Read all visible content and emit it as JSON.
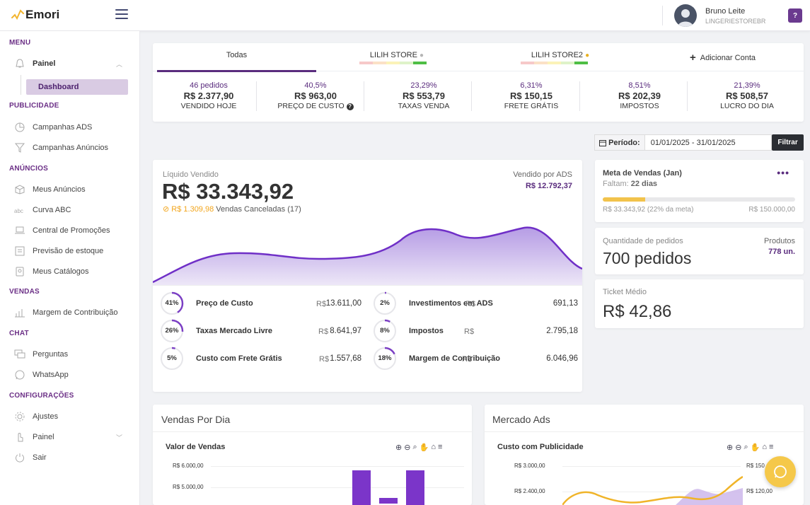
{
  "app": {
    "name": "Emori"
  },
  "user": {
    "name": "Bruno Leite",
    "store": "LINGERIESTOREBR"
  },
  "help": {
    "label": "?"
  },
  "sidebar": {
    "menu_title": "MENU",
    "painel": "Painel",
    "dashboard": "Dashboard",
    "publicidade_title": "PUBLICIDADE",
    "campanhas_ads": "Campanhas ADS",
    "campanhas_anuncios": "Campanhas Anúncios",
    "anuncios_title": "ANÚNCIOS",
    "meus_anuncios": "Meus Anúncios",
    "curva_abc": "Curva ABC",
    "central_promocoes": "Central de Promoções",
    "previsao_estoque": "Previsão de estoque",
    "meus_catalogos": "Meus Catálogos",
    "vendas_title": "VENDAS",
    "margem": "Margem de Contribuição",
    "chat_title": "CHAT",
    "perguntas": "Perguntas",
    "whatsapp": "WhatsApp",
    "config_title": "CONFIGURAÇÕES",
    "ajustes": "Ajustes",
    "painel2": "Painel",
    "sair": "Sair"
  },
  "accounts": {
    "tabs": [
      {
        "label": "Todas"
      },
      {
        "label": "LILIH STORE",
        "medal": "silver"
      },
      {
        "label": "LILIH STORE2",
        "medal": "gold"
      },
      {
        "label": "Adicionar Conta"
      }
    ],
    "stats": [
      {
        "pct": "46 pedidos",
        "value": "R$ 2.377,90",
        "label": "VENDIDO HOJE"
      },
      {
        "pct": "40,5%",
        "value": "R$ 963,00",
        "label": "PREÇO DE CUSTO"
      },
      {
        "pct": "23,29%",
        "value": "R$ 553,79",
        "label": "TAXAS VENDA"
      },
      {
        "pct": "6,31%",
        "value": "R$ 150,15",
        "label": "FRETE GRÁTIS"
      },
      {
        "pct": "8,51%",
        "value": "R$ 202,39",
        "label": "IMPOSTOS"
      },
      {
        "pct": "21,39%",
        "value": "R$ 508,57",
        "label": "LUCRO DO DIA"
      }
    ]
  },
  "period": {
    "label": "Período:",
    "value": "01/01/2025 - 31/01/2025",
    "button": "Filtrar"
  },
  "liquido": {
    "label": "Líquido Vendido",
    "value": "R$ 33.343,92",
    "canceled_value": "R$ 1.309,98",
    "canceled_label": "Vendas Canceladas (17)",
    "ads_label": "Vendido por ADS",
    "ads_value": "R$ 12.792,37"
  },
  "costs": [
    {
      "pct": "41%",
      "fraction": 0.41,
      "label": "Preço de Custo",
      "currency": "R$",
      "value": "13.611,00"
    },
    {
      "pct": "26%",
      "fraction": 0.26,
      "label": "Taxas Mercado Livre",
      "currency": "R$",
      "value": "8.641,97"
    },
    {
      "pct": "5%",
      "fraction": 0.05,
      "label": "Custo com Frete Grátis",
      "currency": "R$",
      "value": "1.557,68"
    },
    {
      "pct": "2%",
      "fraction": 0.02,
      "label": "Investimentos em ADS",
      "currency": "R$",
      "value": "691,13"
    },
    {
      "pct": "8%",
      "fraction": 0.08,
      "label": "Impostos",
      "currency": "R$",
      "value": "2.795,18"
    },
    {
      "pct": "18%",
      "fraction": 0.18,
      "label": "Margem de Contribuição",
      "currency": "R$",
      "value": "6.046,96"
    }
  ],
  "meta": {
    "title": "Meta de Vendas (Jan)",
    "faltam_label": "Faltam:",
    "faltam_value": "22 dias",
    "progress": 0.22,
    "current": "R$ 33.343,92 (22% da meta)",
    "target": "R$ 150.000,00"
  },
  "pedidos": {
    "label": "Quantidade de pedidos",
    "value": "700 pedidos",
    "produtos_label": "Produtos",
    "produtos_value": "778 un."
  },
  "ticket": {
    "label": "Ticket Médio",
    "value": "R$ 42,86"
  },
  "vendas_dia": {
    "title": "Vendas Por Dia",
    "chart_data": {
      "type": "bar",
      "title": "Valor de Vendas",
      "y_ticks": [
        "R$ 6.000,00",
        "R$ 5.000,00"
      ],
      "values": [
        5800,
        4400,
        5800
      ]
    }
  },
  "mercado_ads": {
    "title": "Mercado Ads",
    "chart_data": {
      "type": "line",
      "title": "Custo com Publicidade",
      "y_left_ticks": [
        "R$ 3.000,00",
        "R$ 2.400,00"
      ],
      "y_right_ticks": [
        "R$ 150",
        "R$ 120,00"
      ]
    }
  },
  "colors": {
    "brand": "#5a2c7e",
    "accent": "#f5c84a",
    "area": "#b39ae0"
  }
}
